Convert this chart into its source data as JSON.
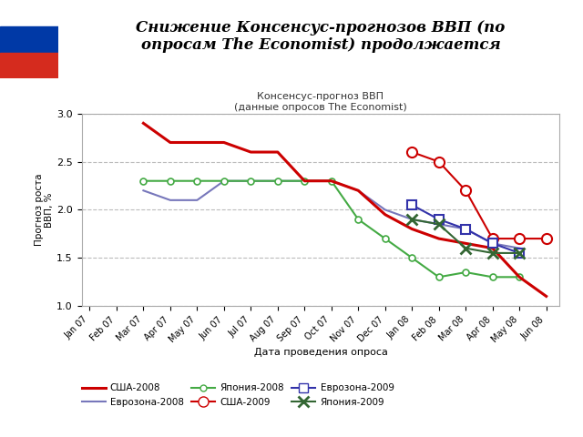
{
  "title_main": "Снижение Консенсус-прогнозов ВВП (по\nопросам The Economist) продолжается",
  "chart_title_line1": "Консенсус-прогноз ВВП",
  "chart_title_line2": "(данные опросов The Economist)",
  "xlabel": "Дата проведения опроса",
  "ylabel": "Прогноз роста\nВВП, %",
  "x_labels": [
    "Jan 07",
    "Feb 07",
    "Mar 07",
    "Apr 07",
    "May 07",
    "Jun 07",
    "Jul 07",
    "Aug 07",
    "Sep 07",
    "Oct 07",
    "Nov 07",
    "Dec 07",
    "Jan 08",
    "Feb 08",
    "Mar 08",
    "Apr 08",
    "May 08",
    "Jun 08"
  ],
  "ylim": [
    1.0,
    3.0
  ],
  "yticks": [
    1.0,
    1.5,
    2.0,
    2.5,
    3.0
  ],
  "usa_2008_x": [
    2,
    3,
    4,
    5,
    6,
    7,
    8,
    9,
    10,
    11,
    12,
    13,
    14,
    15,
    16,
    17
  ],
  "usa_2008_y": [
    2.9,
    2.7,
    2.7,
    2.7,
    2.6,
    2.6,
    2.3,
    2.3,
    2.2,
    1.95,
    1.8,
    1.7,
    1.65,
    1.6,
    1.3,
    1.1
  ],
  "europe_2008_x": [
    2,
    3,
    4,
    5,
    6,
    7,
    8,
    9,
    10,
    11,
    12,
    13,
    14,
    15,
    16
  ],
  "europe_2008_y": [
    2.2,
    2.1,
    2.1,
    2.3,
    2.3,
    2.3,
    2.3,
    2.3,
    2.2,
    2.0,
    1.9,
    1.85,
    1.8,
    1.65,
    1.6
  ],
  "japan_2008_x": [
    2,
    3,
    4,
    5,
    6,
    7,
    8,
    9,
    10,
    11,
    12,
    13,
    14,
    15,
    16
  ],
  "japan_2008_y": [
    2.3,
    2.3,
    2.3,
    2.3,
    2.3,
    2.3,
    2.3,
    2.3,
    1.9,
    1.7,
    1.5,
    1.3,
    1.35,
    1.3,
    1.3
  ],
  "usa_2009_x": [
    12,
    13,
    14,
    15,
    16,
    17
  ],
  "usa_2009_y": [
    2.6,
    2.5,
    2.2,
    1.7,
    1.7,
    1.7
  ],
  "europe_2009_x": [
    12,
    13,
    14,
    15,
    16
  ],
  "europe_2009_y": [
    2.05,
    1.9,
    1.8,
    1.65,
    1.55
  ],
  "japan_2009_x": [
    12,
    13,
    14,
    15,
    16
  ],
  "japan_2009_y": [
    1.9,
    1.85,
    1.6,
    1.55,
    1.55
  ],
  "color_usa": "#cc0000",
  "color_europe_2008": "#7777bb",
  "color_japan_2008": "#44aa44",
  "color_europe_2009": "#3333aa",
  "color_japan_2009": "#336633",
  "background_color": "#ffffff",
  "grid_color": "#bbbbbb",
  "legend_labels": [
    "США-2008",
    "Еврозона-2008",
    "Япония-2008",
    "США-2009",
    "Еврозона-2009",
    "Япония-2009"
  ]
}
